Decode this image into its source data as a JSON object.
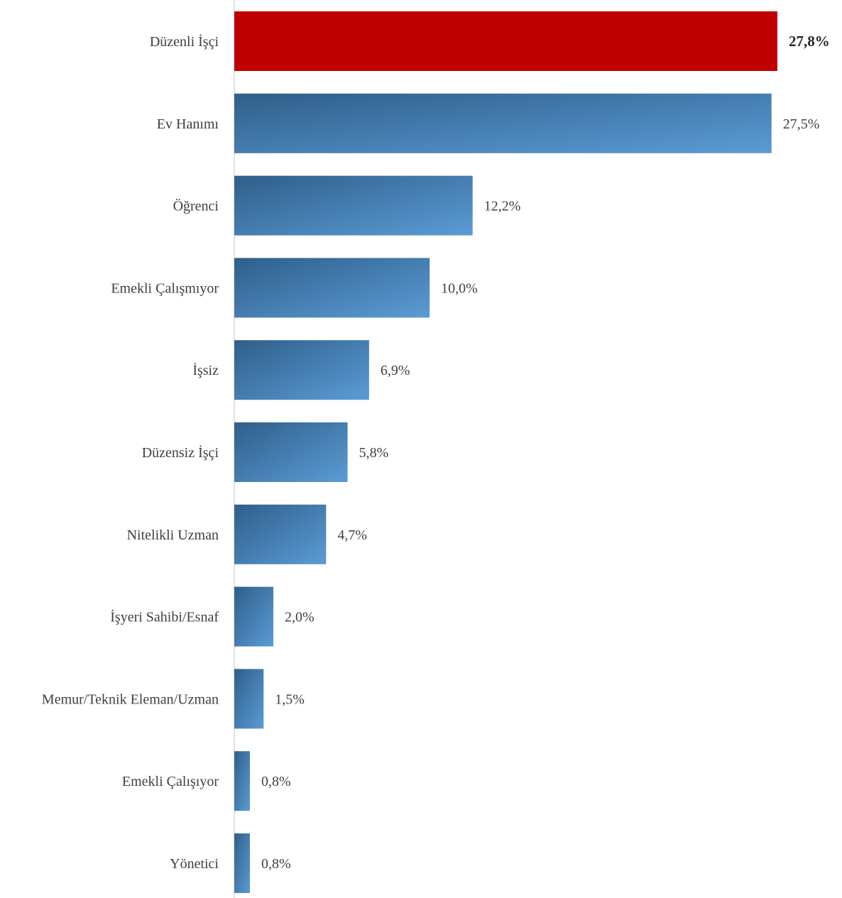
{
  "chart_data": {
    "type": "bar",
    "orientation": "horizontal",
    "categories": [
      "Düzenli İşçi",
      "Ev Hanımı",
      "Öğrenci",
      "Emekli Çalışmıyor",
      "İşsiz",
      "Düzensiz İşçi",
      "Nitelikli Uzman",
      "İşyeri Sahibi/Esnaf",
      "Memur/Teknik Eleman/Uzman",
      "Emekli Çalışıyor",
      "Yönetici"
    ],
    "values": [
      27.8,
      27.5,
      12.2,
      10.0,
      6.9,
      5.8,
      4.7,
      2.0,
      1.5,
      0.8,
      0.8
    ],
    "value_labels": [
      "27,8%",
      "27,5%",
      "12,2%",
      "10,0%",
      "6,9%",
      "5,8%",
      "4,7%",
      "2,0%",
      "1,5%",
      "0,8%",
      "0,8%"
    ],
    "highlight_index": 0,
    "title": "",
    "xlabel": "",
    "ylabel": "",
    "xlim": [
      0,
      30
    ],
    "grid": false,
    "legend": "none",
    "colors": {
      "highlight": "#c00000",
      "bar_dark": "#2f5f8a",
      "bar_light": "#5b9bd5",
      "axis": "#d9d9d9",
      "text": "#404040",
      "highlight_text": "#262626"
    }
  }
}
